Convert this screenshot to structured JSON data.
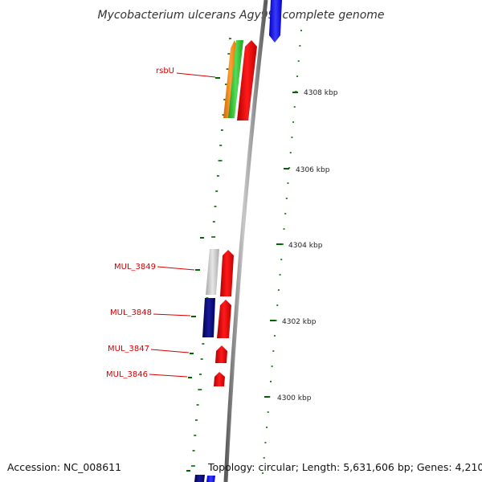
{
  "title": "Mycobacterium ulcerans Agy99, complete genome",
  "footer": {
    "accession": "Accession: NC_008611",
    "topology": "Topology: circular; Length: 5,631,606 bp; Genes: 4,210"
  },
  "gene_labels": [
    "rsbU",
    "MUL_3849",
    "MUL_3848",
    "MUL_3847",
    "MUL_3846"
  ],
  "kbp_labels": [
    "4308 kbp",
    "4306 kbp",
    "4304 kbp",
    "4302 kbp",
    "4300 kbp"
  ],
  "colors": {
    "label_red": "#d40000",
    "cds_red": "#ff0000",
    "navy": "#000080",
    "blue": "#0000ff",
    "orange": "#ff8c00",
    "green": "#33cc33",
    "grey": "#cccccc",
    "tick_green": "#006400",
    "backbone": "#888888"
  }
}
